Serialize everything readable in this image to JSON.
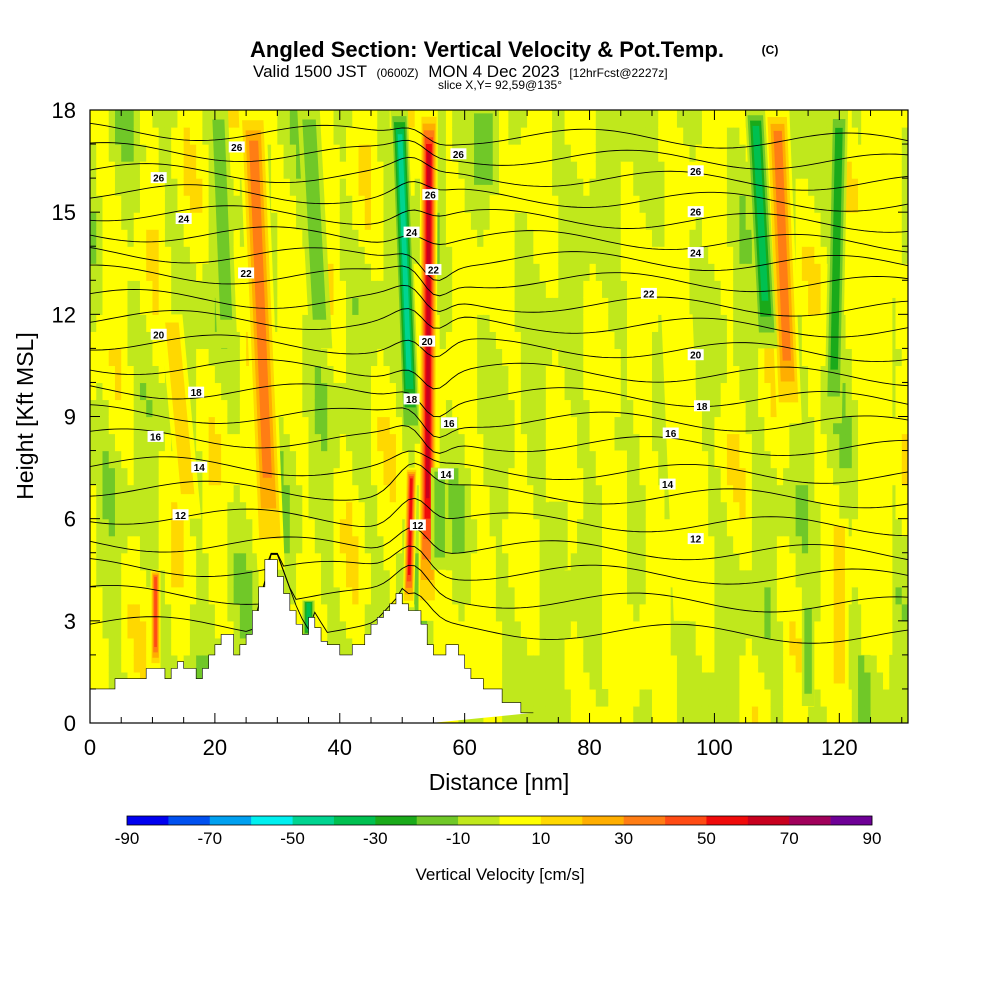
{
  "header": {
    "title": "Angled Section: Vertical Velocity & Pot.Temp.",
    "title_suffix": "(C)",
    "valid_prefix": "Valid 1500 JST",
    "valid_utc": "(0600Z)",
    "valid_date": "MON 4 Dec 2023",
    "forecast": "[12hrFcst@2227z]",
    "slice": "slice X,Y= 92,59@135°"
  },
  "chart_data": {
    "type": "heatmap",
    "title": "Angled Section: Vertical Velocity & Pot.Temp.",
    "xlabel": "Distance [nm]",
    "ylabel": "Height [Kft MSL]",
    "xlim": [
      0,
      131
    ],
    "ylim": [
      0,
      18
    ],
    "x_ticks": [
      "0",
      "20",
      "40",
      "60",
      "80",
      "100",
      "120"
    ],
    "x_tick_values": [
      0,
      20,
      40,
      60,
      80,
      100,
      120
    ],
    "y_ticks": [
      "0",
      "3",
      "6",
      "9",
      "12",
      "15",
      "18"
    ],
    "y_tick_values": [
      0,
      3,
      6,
      9,
      12,
      15,
      18
    ],
    "grid": false,
    "colorbar": {
      "title": "Vertical Velocity [cm/s]",
      "labels": [
        "-90",
        "-70",
        "-50",
        "-30",
        "-10",
        "10",
        "30",
        "50",
        "70",
        "90"
      ],
      "bounds": [
        -90,
        -80,
        -70,
        -60,
        -50,
        -40,
        -30,
        -20,
        -10,
        0,
        10,
        20,
        30,
        40,
        50,
        60,
        70,
        80,
        90
      ],
      "colors": [
        "#0000f0",
        "#0050f0",
        "#00a0f0",
        "#00f0f0",
        "#00d490",
        "#00c050",
        "#1aaa1a",
        "#70c828",
        "#c0e81c",
        "#ffff00",
        "#ffd800",
        "#ffae00",
        "#ff7d14",
        "#ff4b14",
        "#f00a0a",
        "#c8001e",
        "#a0005a",
        "#6e0096"
      ]
    },
    "terrain_profile": {
      "x": [
        0,
        4,
        4,
        9,
        9,
        12,
        12,
        13,
        13,
        14,
        14,
        15,
        15,
        17,
        17,
        18,
        18,
        19,
        19,
        20,
        20,
        21,
        21,
        23,
        23,
        24,
        24,
        25,
        25,
        26,
        26,
        27,
        27,
        28,
        28,
        30,
        30,
        31,
        31,
        32,
        32,
        33,
        33,
        34,
        34,
        35,
        35,
        36,
        36,
        37,
        37,
        38,
        38,
        40,
        40,
        42,
        42,
        44,
        44,
        45,
        45,
        46,
        46,
        47,
        47,
        48,
        48,
        49,
        49,
        50,
        50,
        51,
        51,
        53,
        53,
        54,
        54,
        55,
        55,
        57,
        57,
        59,
        59,
        60,
        60,
        61,
        61,
        63,
        63,
        66,
        66,
        69,
        69,
        71,
        71,
        131
      ],
      "y": [
        1.0,
        1.0,
        1.3,
        1.3,
        1.6,
        1.6,
        1.3,
        1.3,
        1.6,
        1.6,
        1.8,
        1.8,
        1.6,
        1.6,
        1.3,
        1.3,
        1.6,
        1.6,
        2.0,
        2.0,
        2.3,
        2.3,
        2.6,
        2.6,
        2.0,
        2.0,
        2.3,
        2.3,
        2.6,
        2.6,
        3.3,
        3.3,
        4.0,
        4.0,
        4.8,
        4.8,
        4.3,
        4.3,
        3.8,
        3.8,
        3.3,
        3.3,
        2.9,
        2.9,
        2.6,
        2.6,
        3.1,
        3.1,
        2.8,
        2.8,
        2.4,
        2.4,
        2.3,
        2.3,
        2.0,
        2.0,
        2.3,
        2.3,
        2.6,
        2.6,
        2.9,
        2.9,
        3.1,
        3.1,
        3.3,
        3.3,
        3.5,
        3.5,
        3.8,
        3.8,
        3.5,
        3.5,
        3.3,
        3.3,
        2.9,
        2.9,
        2.3,
        2.3,
        2.0,
        2.0,
        2.3,
        2.3,
        2.0,
        2.0,
        1.6,
        1.6,
        1.3,
        1.3,
        1.0,
        1.0,
        0.6,
        0.6,
        0.3,
        0.3,
        0.3
      ]
    },
    "updraft_plumes": [
      {
        "x": 29,
        "bottom": 4.5,
        "top": 18,
        "width": 2.2,
        "w": 45,
        "tilt": -3
      },
      {
        "x": 54,
        "bottom": 3.0,
        "top": 18,
        "width": 1.4,
        "w": 75,
        "tilt": 0.3
      },
      {
        "x": 51,
        "bottom": 3.4,
        "top": 7.5,
        "width": 0.9,
        "w": 65,
        "tilt": 0.5
      },
      {
        "x": 10.5,
        "bottom": 1.6,
        "top": 4.5,
        "width": 0.8,
        "w": 55,
        "tilt": 0
      },
      {
        "x": 112,
        "bottom": 8.8,
        "top": 18,
        "width": 2.0,
        "w": 40,
        "tilt": -2
      },
      {
        "x": 120,
        "bottom": 0.5,
        "top": 6,
        "width": 1.5,
        "w": 20,
        "tilt": 0
      },
      {
        "x": 16,
        "bottom": 6,
        "top": 12,
        "width": 1.8,
        "w": 22,
        "tilt": -3
      },
      {
        "x": 84,
        "bottom": 1,
        "top": 8,
        "width": 2.0,
        "w": 18,
        "tilt": 0
      },
      {
        "x": 96,
        "bottom": 3,
        "top": 12,
        "width": 2.5,
        "w": 18,
        "tilt": -2
      },
      {
        "x": 126,
        "bottom": 2,
        "top": 18,
        "width": 2.5,
        "w": 15,
        "tilt": 0
      }
    ],
    "downdraft_plumes": [
      {
        "x": 51.5,
        "bottom": 8.2,
        "top": 18,
        "width": 1.4,
        "w": -55,
        "tilt": -2
      },
      {
        "x": 22,
        "bottom": 11,
        "top": 18,
        "width": 1.6,
        "w": -25,
        "tilt": -1.5
      },
      {
        "x": 37,
        "bottom": 11,
        "top": 18,
        "width": 1.8,
        "w": -25,
        "tilt": -2
      },
      {
        "x": 108.5,
        "bottom": 11,
        "top": 18,
        "width": 1.6,
        "w": -45,
        "tilt": -2
      },
      {
        "x": 119,
        "bottom": 8.8,
        "top": 18,
        "width": 1.4,
        "w": -30,
        "tilt": 1
      },
      {
        "x": 63,
        "bottom": 15.5,
        "top": 18,
        "width": 2.5,
        "w": -22,
        "tilt": 0
      },
      {
        "x": 35,
        "bottom": 2.5,
        "top": 3.6,
        "width": 1.0,
        "w": -40,
        "tilt": 0
      },
      {
        "x": 56,
        "bottom": 4.5,
        "top": 7.5,
        "width": 1.4,
        "w": -25,
        "tilt": 0
      },
      {
        "x": 75,
        "bottom": 4.5,
        "top": 6.5,
        "width": 1.5,
        "w": -18,
        "tilt": 0
      },
      {
        "x": 115,
        "bottom": 0.5,
        "top": 3.5,
        "width": 1.0,
        "w": -22,
        "tilt": 0
      }
    ],
    "isentropes": {
      "base_height": [
        2.9,
        3.8,
        4.6,
        5.3,
        6.1,
        6.9,
        7.6,
        8.4,
        9.1,
        9.8,
        10.5,
        11.2,
        11.9,
        12.5,
        13.2,
        13.8,
        14.4,
        15.0,
        15.6,
        16.2,
        16.8,
        17.4
      ],
      "labels": [
        {
          "text": "26",
          "x": 23.5,
          "y": 16.9
        },
        {
          "text": "26",
          "x": 11,
          "y": 16.0
        },
        {
          "text": "24",
          "x": 15,
          "y": 14.8
        },
        {
          "text": "22",
          "x": 25,
          "y": 13.2
        },
        {
          "text": "20",
          "x": 11,
          "y": 11.4
        },
        {
          "text": "18",
          "x": 17,
          "y": 9.7
        },
        {
          "text": "16",
          "x": 10.5,
          "y": 8.4
        },
        {
          "text": "14",
          "x": 17.5,
          "y": 7.5
        },
        {
          "text": "12",
          "x": 14.5,
          "y": 6.1
        },
        {
          "text": "26",
          "x": 59,
          "y": 16.7
        },
        {
          "text": "26",
          "x": 54.5,
          "y": 15.5
        },
        {
          "text": "24",
          "x": 51.5,
          "y": 14.4
        },
        {
          "text": "22",
          "x": 55,
          "y": 13.3
        },
        {
          "text": "20",
          "x": 54,
          "y": 11.2
        },
        {
          "text": "18",
          "x": 51.5,
          "y": 9.5
        },
        {
          "text": "16",
          "x": 57.5,
          "y": 8.8
        },
        {
          "text": "14",
          "x": 57,
          "y": 7.3
        },
        {
          "text": "12",
          "x": 52.5,
          "y": 5.8
        },
        {
          "text": "26",
          "x": 97,
          "y": 16.2
        },
        {
          "text": "26",
          "x": 97,
          "y": 15.0
        },
        {
          "text": "24",
          "x": 97,
          "y": 13.8
        },
        {
          "text": "22",
          "x": 89.5,
          "y": 12.6
        },
        {
          "text": "20",
          "x": 97,
          "y": 10.8
        },
        {
          "text": "18",
          "x": 98,
          "y": 9.3
        },
        {
          "text": "16",
          "x": 93,
          "y": 8.5
        },
        {
          "text": "14",
          "x": 92.5,
          "y": 7.0
        },
        {
          "text": "12",
          "x": 97,
          "y": 5.4
        }
      ]
    }
  }
}
